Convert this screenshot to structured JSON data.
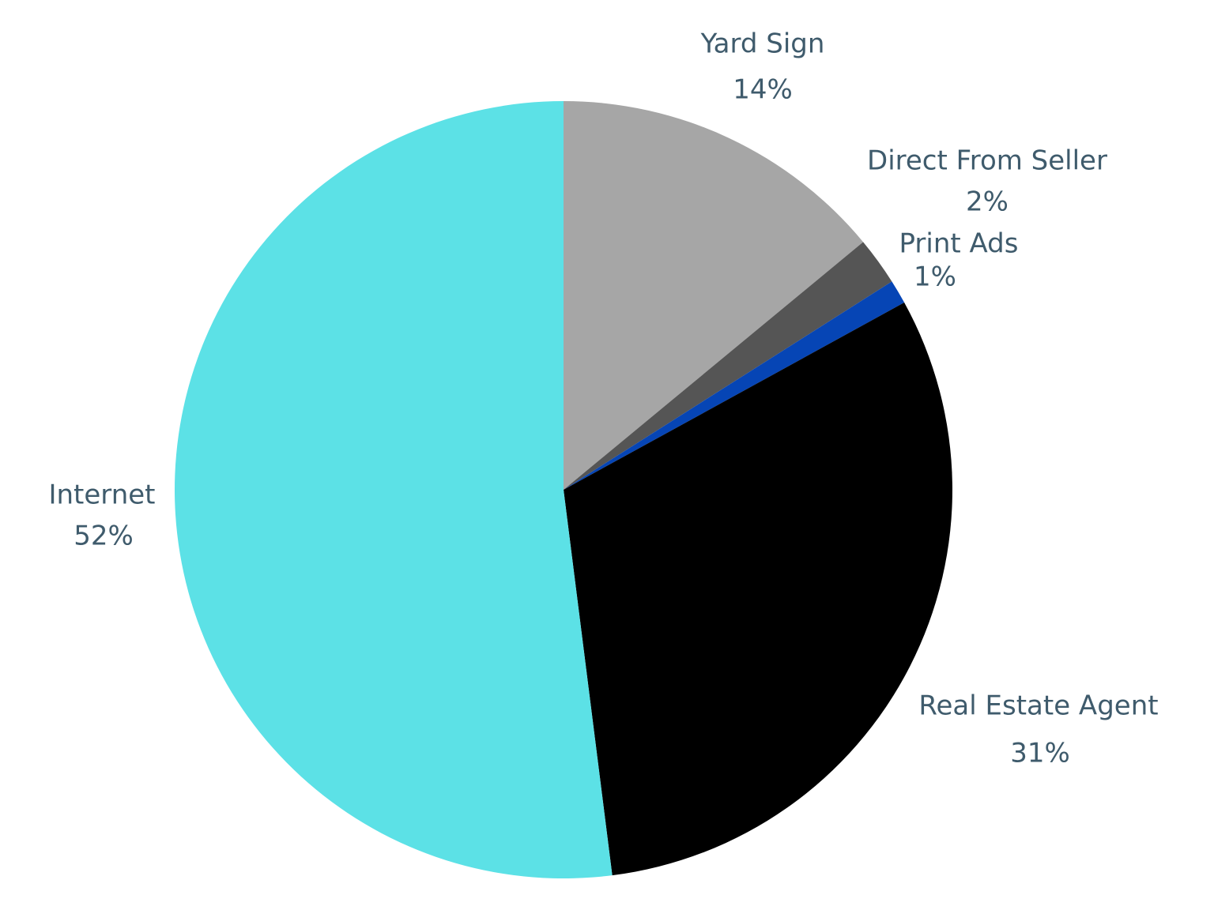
{
  "chart_data": {
    "type": "pie",
    "categories": [
      "Yard Sign",
      "Direct From Seller",
      "Print Ads",
      "Real Estate Agent",
      "Internet"
    ],
    "values": [
      14,
      2,
      1,
      31,
      52
    ],
    "value_labels": [
      "14%",
      "2%",
      "1%",
      "31%",
      "52%"
    ],
    "colors": [
      "#a6a6a6",
      "#555555",
      "#0645b5",
      "#000000",
      "#5ce1e6"
    ],
    "start_angle": 0,
    "direction": "clockwise"
  }
}
